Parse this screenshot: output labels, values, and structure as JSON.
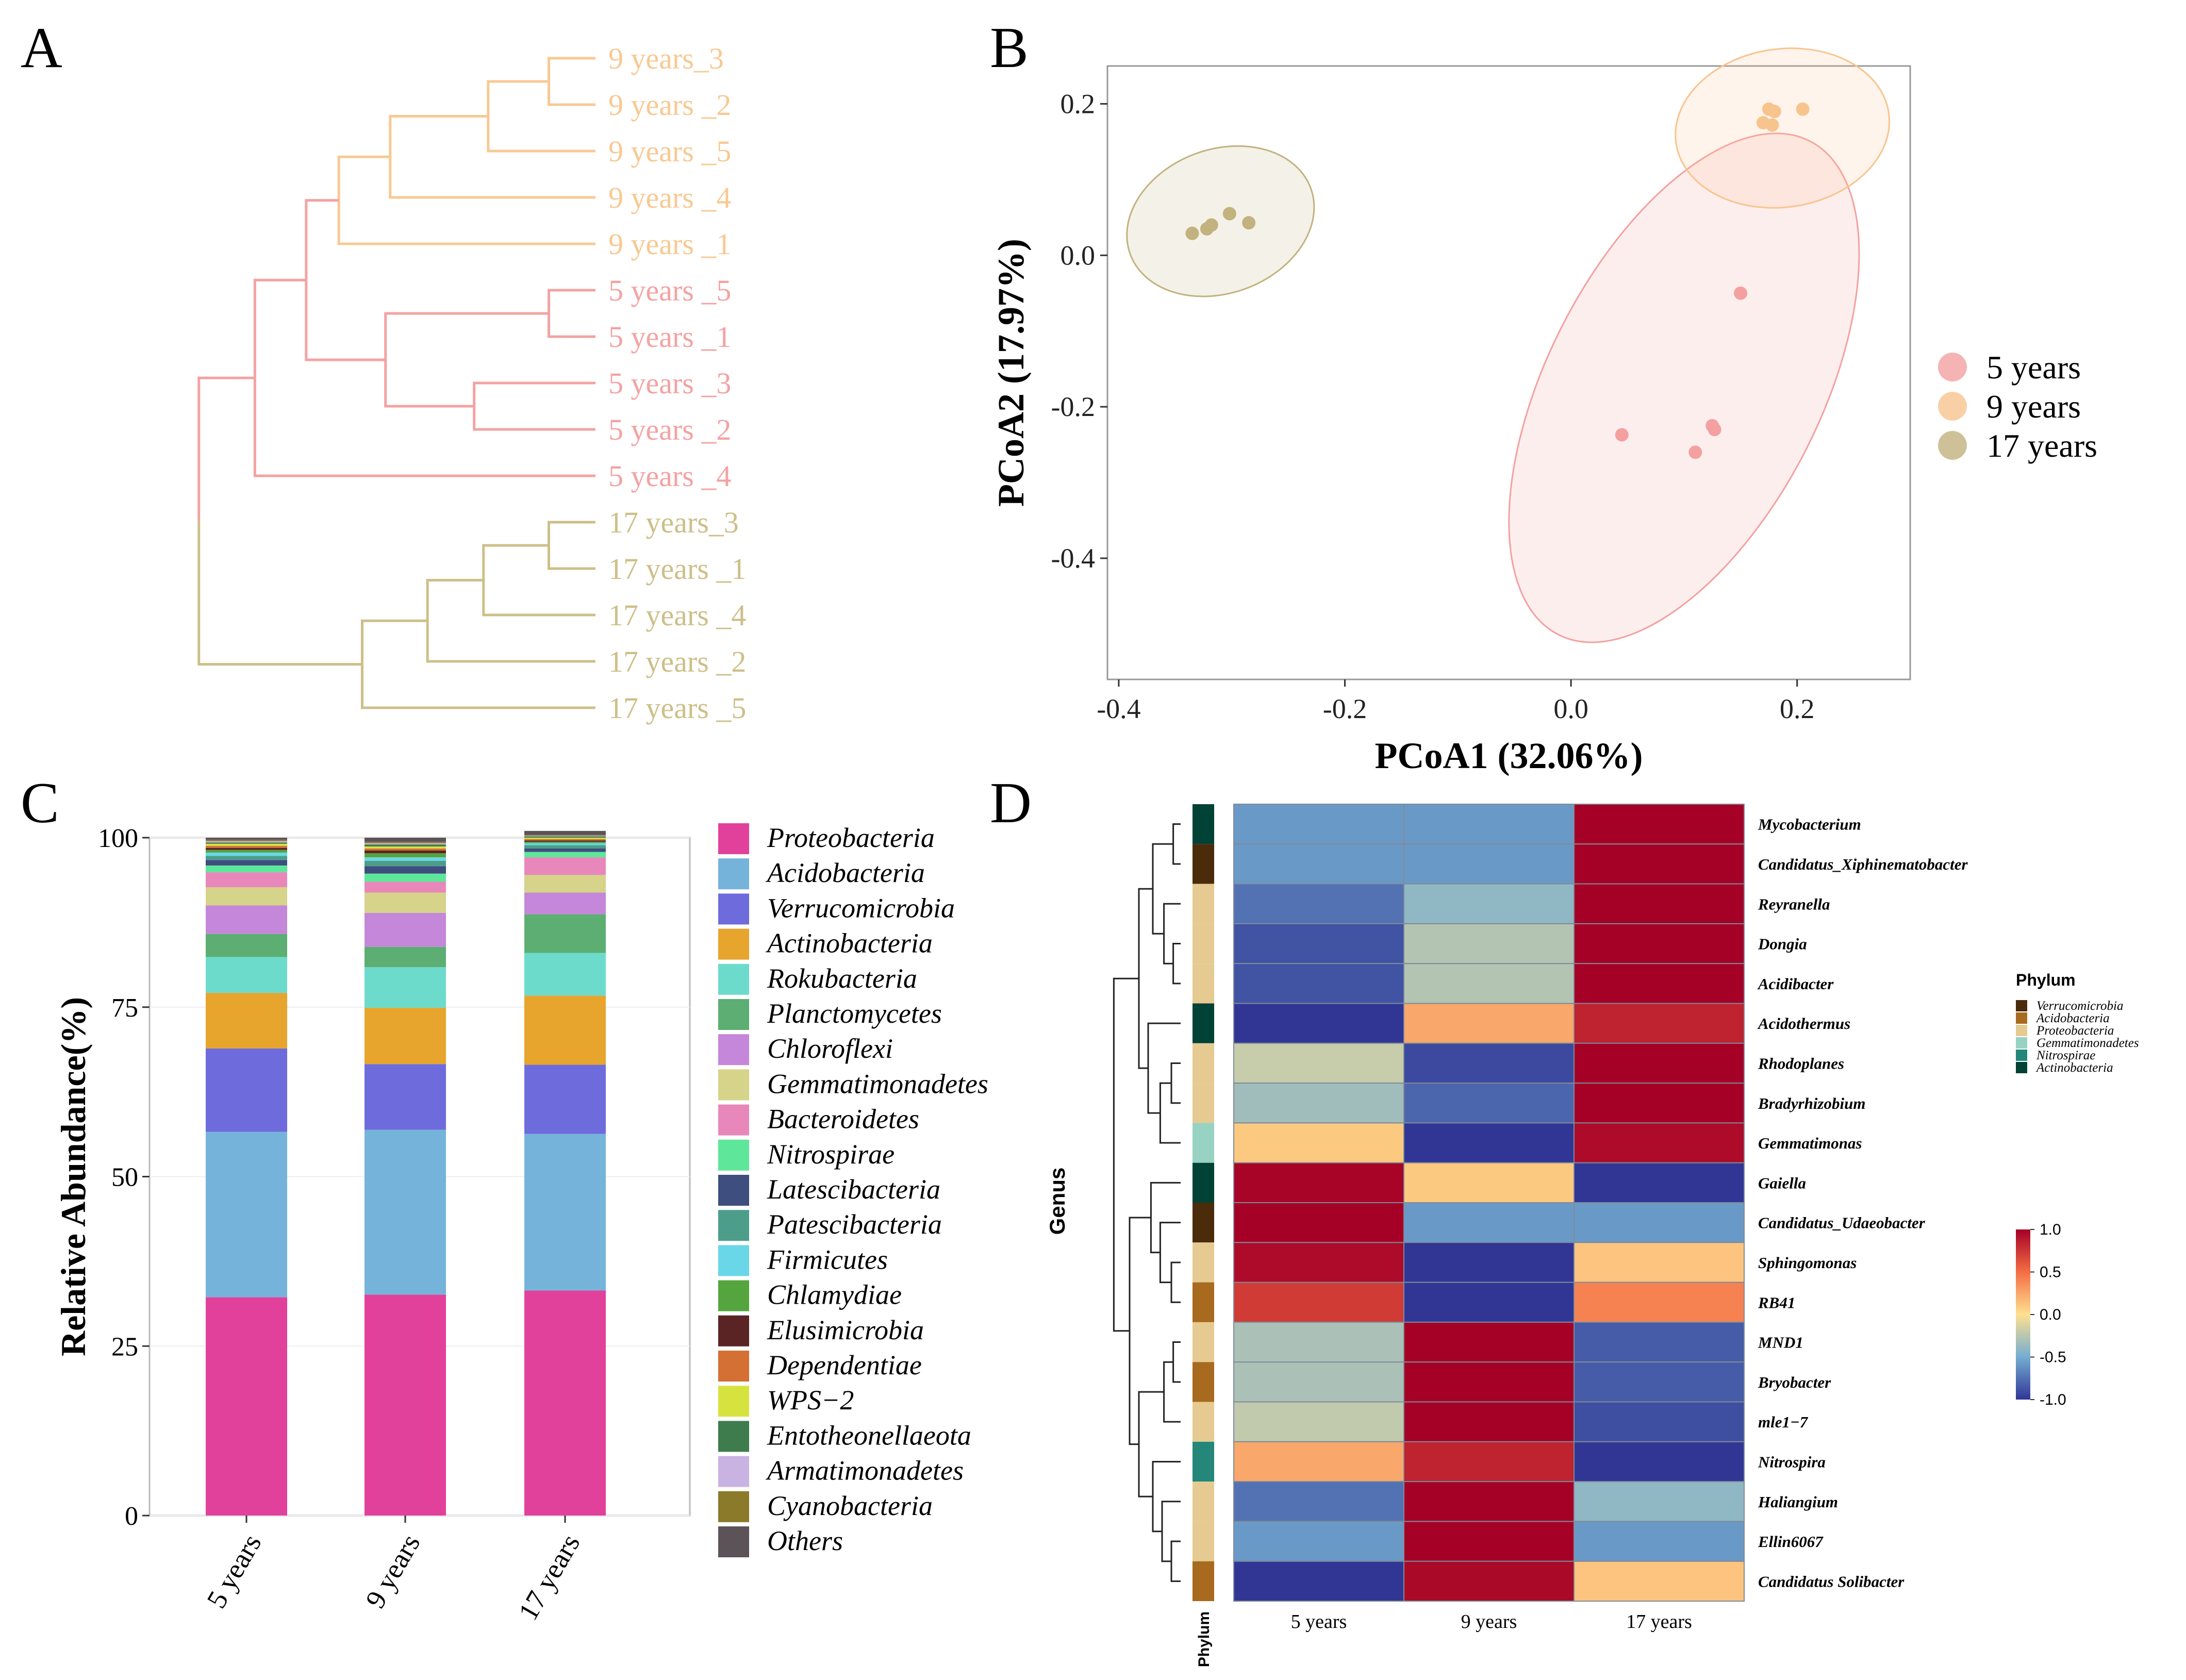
{
  "panels": {
    "a": "A",
    "b": "B",
    "c": "C",
    "d": "D"
  },
  "chart_data": [
    {
      "id": "A",
      "type": "dendrogram",
      "title": "",
      "colors": {
        "9 years": "#F8C992",
        "5 years": "#F4A2A2",
        "17 years": "#CDBF88"
      },
      "leaves": [
        {
          "label": "9 years_3",
          "group": "9 years"
        },
        {
          "label": "9 years _2",
          "group": "9 years"
        },
        {
          "label": "9 years _5",
          "group": "9 years"
        },
        {
          "label": "9 years _4",
          "group": "9 years"
        },
        {
          "label": "9 years _1",
          "group": "9 years"
        },
        {
          "label": "5 years _5",
          "group": "5 years"
        },
        {
          "label": "5 years _1",
          "group": "5 years"
        },
        {
          "label": "5 years _3",
          "group": "5 years"
        },
        {
          "label": "5 years _2",
          "group": "5 years"
        },
        {
          "label": "5 years _4",
          "group": "5 years"
        },
        {
          "label": "17 years_3",
          "group": "17 years"
        },
        {
          "label": "17 years _1",
          "group": "17 years"
        },
        {
          "label": "17 years _4",
          "group": "17 years"
        },
        {
          "label": "17 years _2",
          "group": "17 years"
        },
        {
          "label": "17 years _5",
          "group": "17 years"
        }
      ],
      "merges": [
        {
          "a": 0,
          "b": 1,
          "h": 0.1,
          "c": "9 years"
        },
        {
          "a": 15,
          "b": 2,
          "h": 0.23,
          "c": "9 years"
        },
        {
          "a": 16,
          "b": 3,
          "h": 0.44,
          "c": "9 years"
        },
        {
          "a": 17,
          "b": 4,
          "h": 0.55,
          "c": "9 years"
        },
        {
          "a": 5,
          "b": 6,
          "h": 0.1,
          "c": "5 years"
        },
        {
          "a": 7,
          "b": 8,
          "h": 0.26,
          "c": "5 years"
        },
        {
          "a": 19,
          "b": 20,
          "h": 0.45,
          "c": "5 years"
        },
        {
          "a": 18,
          "b": 21,
          "h": 0.62,
          "c": "5 years"
        },
        {
          "a": 22,
          "b": 9,
          "h": 0.73,
          "c": "5 years"
        },
        {
          "a": 10,
          "b": 11,
          "h": 0.1,
          "c": "17 years"
        },
        {
          "a": 24,
          "b": 12,
          "h": 0.24,
          "c": "17 years"
        },
        {
          "a": 25,
          "b": 13,
          "h": 0.36,
          "c": "17 years"
        },
        {
          "a": 26,
          "b": 14,
          "h": 0.5,
          "c": "17 years"
        },
        {
          "a": 23,
          "b": 27,
          "h": 0.85,
          "c": "split"
        }
      ]
    },
    {
      "id": "B",
      "type": "scatter",
      "title": "",
      "xlabel": "PCoA1 (32.06%)",
      "ylabel": "PCoA2 (17.97%)",
      "xlim": [
        -0.41,
        0.3
      ],
      "ylim": [
        -0.56,
        0.25
      ],
      "xticks": [
        -0.4,
        -0.2,
        0.0,
        0.2
      ],
      "yticks": [
        0.2,
        0.0,
        -0.2,
        -0.4
      ],
      "xtick_labels": [
        "-0.4",
        "-0.2",
        "0.0",
        "0.2"
      ],
      "ytick_labels": [
        "0.2",
        "0.0",
        "-0.2",
        "-0.4"
      ],
      "legend_position": "right",
      "series": [
        {
          "name": "5 years",
          "color": "#F4A0A0",
          "x": [
            0.15,
            0.045,
            0.125,
            0.127,
            0.11
          ],
          "y": [
            -0.05,
            -0.237,
            -0.225,
            -0.23,
            -0.26
          ],
          "ellipse": {
            "cx": 0.1,
            "cy": -0.175,
            "rx": 0.245,
            "ry": 0.095,
            "angle_deg": -63
          }
        },
        {
          "name": "9 years",
          "color": "#F8C48E",
          "x": [
            0.175,
            0.18,
            0.205,
            0.17,
            0.178
          ],
          "y": [
            0.193,
            0.19,
            0.193,
            0.175,
            0.172
          ],
          "ellipse": {
            "cx": 0.187,
            "cy": 0.168,
            "rx": 0.095,
            "ry": 0.055,
            "angle_deg": -8
          }
        },
        {
          "name": "17 years",
          "color": "#C2B27E",
          "x": [
            -0.335,
            -0.322,
            -0.318,
            -0.302,
            -0.285
          ],
          "y": [
            0.029,
            0.035,
            0.04,
            0.055,
            0.043
          ],
          "ellipse": {
            "cx": -0.31,
            "cy": 0.045,
            "rx": 0.085,
            "ry": 0.05,
            "angle_deg": -20
          }
        }
      ]
    },
    {
      "id": "C",
      "type": "bar",
      "stacked": true,
      "title": "",
      "xlabel": "",
      "ylabel": "Relative Abundance(%)",
      "ylim": [
        0,
        100
      ],
      "yticks": [
        0,
        25,
        50,
        75,
        100
      ],
      "categories": [
        "5 years",
        "9 years",
        "17 years"
      ],
      "legend_position": "right",
      "series": [
        {
          "name": "Proteobacteria",
          "color": "#E2419B",
          "values": [
            32.2,
            32.6,
            33.2
          ]
        },
        {
          "name": "Acidobacteria",
          "color": "#76B3DB",
          "values": [
            24.4,
            24.3,
            23.1
          ]
        },
        {
          "name": "Verrucomicrobia",
          "color": "#6E6CDC",
          "values": [
            12.3,
            9.7,
            10.2
          ]
        },
        {
          "name": "Actinobacteria",
          "color": "#E7A52E",
          "values": [
            8.2,
            8.3,
            10.2
          ]
        },
        {
          "name": "Rokubacteria",
          "color": "#6DDBCC",
          "values": [
            5.3,
            6.0,
            6.3
          ]
        },
        {
          "name": "Planctomycetes",
          "color": "#5CAE73",
          "values": [
            3.4,
            3.0,
            5.7
          ]
        },
        {
          "name": "Chloroflexi",
          "color": "#C487D9",
          "values": [
            4.2,
            5.0,
            3.2
          ]
        },
        {
          "name": "Gemmatimonadetes",
          "color": "#D6D38A",
          "values": [
            2.7,
            3.0,
            2.6
          ]
        },
        {
          "name": "Bacteroidetes",
          "color": "#E888BA",
          "values": [
            2.2,
            1.6,
            2.6
          ]
        },
        {
          "name": "Nitrospirae",
          "color": "#5EE79A",
          "values": [
            1.0,
            1.2,
            0.8
          ]
        },
        {
          "name": "Latescibacteria",
          "color": "#3E4E7E",
          "values": [
            0.8,
            1.1,
            0.5
          ]
        },
        {
          "name": "Patescibacteria",
          "color": "#4C9E8A",
          "values": [
            0.6,
            0.8,
            0.5
          ]
        },
        {
          "name": "Firmicutes",
          "color": "#6AD7E8",
          "values": [
            0.5,
            0.5,
            0.3
          ]
        },
        {
          "name": "Chlamydiae",
          "color": "#55A53F",
          "values": [
            0.4,
            0.6,
            0.2
          ]
        },
        {
          "name": "Elusimicrobia",
          "color": "#5A2424",
          "values": [
            0.3,
            0.4,
            0.2
          ]
        },
        {
          "name": "Dependentiae",
          "color": "#D57034",
          "values": [
            0.3,
            0.3,
            0.2
          ]
        },
        {
          "name": "WPS−2",
          "color": "#D6E33F",
          "values": [
            0.3,
            0.3,
            0.2
          ]
        },
        {
          "name": "Entotheonellaeota",
          "color": "#3F7C4D",
          "values": [
            0.2,
            0.3,
            0.2
          ]
        },
        {
          "name": "Armatimonadetes",
          "color": "#C9B3E2",
          "values": [
            0.2,
            0.2,
            0.1
          ]
        },
        {
          "name": "Cyanobacteria",
          "color": "#8A7A2A",
          "values": [
            0.2,
            0.2,
            0.1
          ]
        },
        {
          "name": "Others",
          "color": "#5C5358",
          "values": [
            0.3,
            0.6,
            0.6
          ]
        }
      ]
    },
    {
      "id": "D",
      "type": "heatmap",
      "title": "",
      "xlabel": "",
      "ylabel": "Genus",
      "phylum_label": "Phylum",
      "categories": [
        "5 years",
        "9 years",
        "17 years"
      ],
      "rows": [
        "Mycobacterium",
        "Candidatus_Xiphinematobacter",
        "Reyranella",
        "Dongia",
        "Acidibacter",
        "Acidothermus",
        "Rhodoplanes",
        "Bradyrhizobium",
        "Gemmatimonas",
        "Gaiella",
        "Candidatus_Udaeobacter",
        "Sphingomonas",
        "RB41",
        "MND1",
        "Bryobacter",
        "mle1−7",
        "Nitrospira",
        "Haliangium",
        "Ellin6067",
        "Candidatus Solibacter"
      ],
      "row_phylum": [
        "Actinobacteria",
        "Verrucomicrobia",
        "Proteobacteria",
        "Proteobacteria",
        "Proteobacteria",
        "Actinobacteria",
        "Proteobacteria",
        "Proteobacteria",
        "Gemmatimonadetes",
        "Actinobacteria",
        "Verrucomicrobia",
        "Proteobacteria",
        "Acidobacteria",
        "Proteobacteria",
        "Acidobacteria",
        "Proteobacteria",
        "Nitrospirae",
        "Proteobacteria",
        "Proteobacteria",
        "Acidobacteria"
      ],
      "values": [
        [
          -0.58,
          -0.58,
          1.15
        ],
        [
          -0.58,
          -0.58,
          1.15
        ],
        [
          -0.75,
          -0.4,
          1.15
        ],
        [
          -0.88,
          -0.27,
          1.15
        ],
        [
          -0.88,
          -0.27,
          1.15
        ],
        [
          -1.09,
          0.25,
          0.84
        ],
        [
          -0.2,
          -0.92,
          1.12
        ],
        [
          -0.34,
          -0.8,
          1.14
        ],
        [
          0.1,
          -1.05,
          0.95
        ],
        [
          0.98,
          0.1,
          -1.08
        ],
        [
          1.15,
          -0.58,
          -0.58
        ],
        [
          0.95,
          -1.05,
          0.12
        ],
        [
          0.73,
          -1.13,
          0.41
        ],
        [
          -0.3,
          1.15,
          -0.84
        ],
        [
          -0.3,
          1.15,
          -0.84
        ],
        [
          -0.22,
          1.12,
          -0.9
        ],
        [
          0.25,
          0.84,
          -1.09
        ],
        [
          -0.75,
          1.15,
          -0.4
        ],
        [
          -0.58,
          1.15,
          -0.58
        ],
        [
          -1.08,
          0.96,
          0.12
        ]
      ],
      "legend": {
        "title": "Phylum",
        "items": [
          {
            "name": "Verrucomicrobia",
            "color": "#4A2C0A"
          },
          {
            "name": "Acidobacteria",
            "color": "#A86A1F"
          },
          {
            "name": "Proteobacteria",
            "color": "#E5CB91"
          },
          {
            "name": "Gemmatimonadetes",
            "color": "#97D2C3"
          },
          {
            "name": "Nitrospirae",
            "color": "#24877A"
          },
          {
            "name": "Actinobacteria",
            "color": "#004236"
          }
        ]
      },
      "colorbar": {
        "min": -1.0,
        "max": 1.0,
        "ticks": [
          "1.0",
          "0.5",
          "0.0",
          "-0.5",
          "-1.0"
        ],
        "tick_values": [
          1.0,
          0.5,
          0.0,
          -0.5,
          -1.0
        ]
      }
    }
  ]
}
